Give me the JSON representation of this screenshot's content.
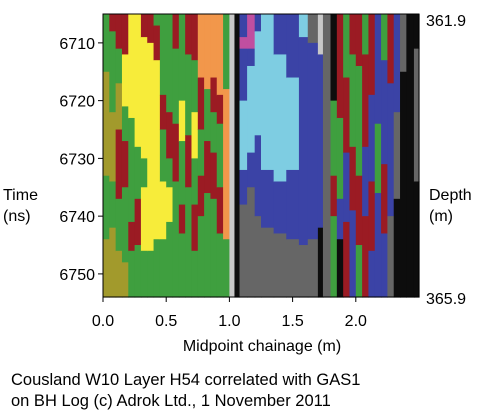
{
  "chart_data": {
    "type": "heatmap",
    "title": "",
    "xlabel": "Midpoint chainage (m)",
    "ylabel_left": [
      "Time",
      "(ns)"
    ],
    "ylabel_right": [
      "Depth",
      "(m)"
    ],
    "xlim": [
      0,
      2.5
    ],
    "ylim": [
      6705,
      6754
    ],
    "xticks": [
      0.0,
      0.5,
      1.0,
      1.5,
      2.0
    ],
    "xtick_labels": [
      "0.0",
      "0.5",
      "1.0",
      "1.5",
      "2.0"
    ],
    "yticks": [
      6710,
      6720,
      6730,
      6740,
      6750
    ],
    "ytick_labels": [
      "6710",
      "6720",
      "6730",
      "6740",
      "6750"
    ],
    "depth_top": "361.9",
    "depth_bottom": "365.9",
    "palette": {
      "yellow": "#f7ec3a",
      "olive": "#a29a2c",
      "green": "#3f9f3f",
      "darkred": "#9b1b23",
      "orange": "#f2974b",
      "lightgray": "#c8c8c8",
      "gray": "#666666",
      "black": "#0d0d0d",
      "blue": "#3b43a6",
      "cyan": "#7ecde2",
      "magenta": "#c04fa0",
      "white": "#ffffff"
    },
    "columns": [
      {
        "x0": 0.0,
        "x1": 0.05,
        "segments": [
          [
            "green",
            6705,
            6715
          ],
          [
            "olive",
            6715,
            6733
          ],
          [
            "green",
            6733,
            6744
          ],
          [
            "olive",
            6744,
            6754
          ]
        ]
      },
      {
        "x0": 0.05,
        "x1": 0.1,
        "segments": [
          [
            "darkred",
            6705,
            6708
          ],
          [
            "green",
            6708,
            6722
          ],
          [
            "olive",
            6722,
            6734
          ],
          [
            "green",
            6734,
            6742
          ],
          [
            "olive",
            6742,
            6754
          ]
        ]
      },
      {
        "x0": 0.1,
        "x1": 0.15,
        "segments": [
          [
            "darkred",
            6705,
            6711
          ],
          [
            "green",
            6711,
            6717
          ],
          [
            "olive",
            6717,
            6725
          ],
          [
            "darkred",
            6725,
            6737
          ],
          [
            "green",
            6737,
            6746
          ],
          [
            "olive",
            6746,
            6754
          ]
        ]
      },
      {
        "x0": 0.15,
        "x1": 0.2,
        "segments": [
          [
            "darkred",
            6705,
            6712
          ],
          [
            "yellow",
            6712,
            6721
          ],
          [
            "green",
            6721,
            6727
          ],
          [
            "darkred",
            6727,
            6735
          ],
          [
            "green",
            6735,
            6748
          ],
          [
            "olive",
            6748,
            6754
          ]
        ]
      },
      {
        "x0": 0.2,
        "x1": 0.25,
        "segments": [
          [
            "yellow",
            6705,
            6723
          ],
          [
            "green",
            6723,
            6741
          ],
          [
            "darkred",
            6741,
            6746
          ],
          [
            "green",
            6746,
            6754
          ]
        ]
      },
      {
        "x0": 0.25,
        "x1": 0.3,
        "segments": [
          [
            "yellow",
            6705,
            6728
          ],
          [
            "green",
            6728,
            6737
          ],
          [
            "darkred",
            6737,
            6745
          ],
          [
            "green",
            6745,
            6754
          ]
        ]
      },
      {
        "x0": 0.3,
        "x1": 0.35,
        "segments": [
          [
            "darkred",
            6705,
            6709
          ],
          [
            "yellow",
            6709,
            6730
          ],
          [
            "green",
            6730,
            6735
          ],
          [
            "yellow",
            6735,
            6746
          ],
          [
            "green",
            6746,
            6754
          ]
        ]
      },
      {
        "x0": 0.35,
        "x1": 0.4,
        "segments": [
          [
            "darkred",
            6705,
            6710
          ],
          [
            "yellow",
            6710,
            6746
          ],
          [
            "green",
            6746,
            6754
          ]
        ]
      },
      {
        "x0": 0.4,
        "x1": 0.45,
        "segments": [
          [
            "green",
            6705,
            6707
          ],
          [
            "darkred",
            6707,
            6713
          ],
          [
            "yellow",
            6713,
            6744
          ],
          [
            "green",
            6744,
            6754
          ]
        ]
      },
      {
        "x0": 0.45,
        "x1": 0.5,
        "segments": [
          [
            "green",
            6705,
            6719
          ],
          [
            "darkred",
            6719,
            6725
          ],
          [
            "green",
            6725,
            6734
          ],
          [
            "yellow",
            6734,
            6744
          ],
          [
            "green",
            6744,
            6754
          ]
        ]
      },
      {
        "x0": 0.5,
        "x1": 0.55,
        "segments": [
          [
            "green",
            6705,
            6722
          ],
          [
            "darkred",
            6722,
            6730
          ],
          [
            "green",
            6730,
            6735
          ],
          [
            "yellow",
            6735,
            6741
          ],
          [
            "green",
            6741,
            6754
          ]
        ]
      },
      {
        "x0": 0.55,
        "x1": 0.6,
        "segments": [
          [
            "darkred",
            6705,
            6711
          ],
          [
            "green",
            6711,
            6724
          ],
          [
            "darkred",
            6724,
            6734
          ],
          [
            "green",
            6734,
            6754
          ]
        ]
      },
      {
        "x0": 0.6,
        "x1": 0.65,
        "segments": [
          [
            "green",
            6705,
            6720
          ],
          [
            "yellow",
            6720,
            6727
          ],
          [
            "green",
            6727,
            6738
          ],
          [
            "darkred",
            6738,
            6743
          ],
          [
            "green",
            6743,
            6754
          ]
        ]
      },
      {
        "x0": 0.65,
        "x1": 0.7,
        "segments": [
          [
            "darkred",
            6705,
            6712
          ],
          [
            "green",
            6712,
            6726
          ],
          [
            "darkred",
            6726,
            6735
          ],
          [
            "green",
            6735,
            6754
          ]
        ]
      },
      {
        "x0": 0.7,
        "x1": 0.75,
        "segments": [
          [
            "darkred",
            6705,
            6713
          ],
          [
            "green",
            6713,
            6722
          ],
          [
            "yellow",
            6722,
            6730
          ],
          [
            "green",
            6730,
            6738
          ],
          [
            "darkred",
            6738,
            6746
          ],
          [
            "green",
            6746,
            6754
          ]
        ]
      },
      {
        "x0": 0.75,
        "x1": 0.8,
        "segments": [
          [
            "orange",
            6705,
            6716
          ],
          [
            "darkred",
            6716,
            6725
          ],
          [
            "green",
            6725,
            6733
          ],
          [
            "darkred",
            6733,
            6740
          ],
          [
            "green",
            6740,
            6754
          ]
        ]
      },
      {
        "x0": 0.8,
        "x1": 0.85,
        "segments": [
          [
            "orange",
            6705,
            6718
          ],
          [
            "green",
            6718,
            6727
          ],
          [
            "darkred",
            6727,
            6736
          ],
          [
            "green",
            6736,
            6754
          ]
        ]
      },
      {
        "x0": 0.85,
        "x1": 0.9,
        "segments": [
          [
            "orange",
            6705,
            6716
          ],
          [
            "darkred",
            6716,
            6722
          ],
          [
            "green",
            6722,
            6729
          ],
          [
            "darkred",
            6729,
            6737
          ],
          [
            "green",
            6737,
            6754
          ]
        ]
      },
      {
        "x0": 0.9,
        "x1": 0.95,
        "segments": [
          [
            "orange",
            6705,
            6719
          ],
          [
            "darkred",
            6719,
            6724
          ],
          [
            "green",
            6724,
            6735
          ],
          [
            "darkred",
            6735,
            6743
          ],
          [
            "green",
            6743,
            6754
          ]
        ]
      },
      {
        "x0": 0.95,
        "x1": 1.0,
        "segments": [
          [
            "green",
            6705,
            6718
          ],
          [
            "orange",
            6718,
            6744
          ],
          [
            "green",
            6744,
            6754
          ]
        ]
      },
      {
        "x0": 1.0,
        "x1": 1.04,
        "segments": [
          [
            "lightgray",
            6705,
            6754
          ]
        ]
      },
      {
        "x0": 1.04,
        "x1": 1.08,
        "segments": [
          [
            "black",
            6705,
            6754
          ]
        ]
      },
      {
        "x0": 1.08,
        "x1": 1.14,
        "segments": [
          [
            "blue",
            6705,
            6709
          ],
          [
            "magenta",
            6709,
            6711
          ],
          [
            "blue",
            6711,
            6720
          ],
          [
            "cyan",
            6720,
            6732
          ],
          [
            "blue",
            6732,
            6738
          ],
          [
            "gray",
            6738,
            6754
          ]
        ]
      },
      {
        "x0": 1.14,
        "x1": 1.2,
        "segments": [
          [
            "magenta",
            6705,
            6711
          ],
          [
            "blue",
            6711,
            6714
          ],
          [
            "cyan",
            6714,
            6729
          ],
          [
            "blue",
            6729,
            6735
          ],
          [
            "gray",
            6735,
            6754
          ]
        ]
      },
      {
        "x0": 1.2,
        "x1": 1.25,
        "segments": [
          [
            "blue",
            6705,
            6708
          ],
          [
            "cyan",
            6708,
            6726
          ],
          [
            "blue",
            6726,
            6740
          ],
          [
            "gray",
            6740,
            6754
          ]
        ]
      },
      {
        "x0": 1.25,
        "x1": 1.35,
        "segments": [
          [
            "cyan",
            6705,
            6732
          ],
          [
            "blue",
            6732,
            6742
          ],
          [
            "gray",
            6742,
            6754
          ]
        ]
      },
      {
        "x0": 1.35,
        "x1": 1.45,
        "segments": [
          [
            "blue",
            6705,
            6712
          ],
          [
            "cyan",
            6712,
            6734
          ],
          [
            "blue",
            6734,
            6743
          ],
          [
            "gray",
            6743,
            6754
          ]
        ]
      },
      {
        "x0": 1.45,
        "x1": 1.55,
        "segments": [
          [
            "blue",
            6705,
            6716
          ],
          [
            "cyan",
            6716,
            6732
          ],
          [
            "blue",
            6732,
            6744
          ],
          [
            "gray",
            6744,
            6754
          ]
        ]
      },
      {
        "x0": 1.55,
        "x1": 1.62,
        "segments": [
          [
            "cyan",
            6705,
            6709
          ],
          [
            "blue",
            6709,
            6745
          ],
          [
            "gray",
            6745,
            6754
          ]
        ]
      },
      {
        "x0": 1.62,
        "x1": 1.7,
        "segments": [
          [
            "gray",
            6705,
            6710
          ],
          [
            "blue",
            6710,
            6744
          ],
          [
            "gray",
            6744,
            6754
          ]
        ]
      },
      {
        "x0": 1.7,
        "x1": 1.74,
        "segments": [
          [
            "lightgray",
            6705,
            6712
          ],
          [
            "blue",
            6712,
            6742
          ],
          [
            "black",
            6742,
            6754
          ]
        ]
      },
      {
        "x0": 1.74,
        "x1": 1.8,
        "segments": [
          [
            "gray",
            6705,
            6754
          ]
        ]
      },
      {
        "x0": 1.8,
        "x1": 1.85,
        "segments": [
          [
            "black",
            6705,
            6720
          ],
          [
            "green",
            6720,
            6733
          ],
          [
            "darkred",
            6733,
            6740
          ],
          [
            "green",
            6740,
            6754
          ]
        ]
      },
      {
        "x0": 1.85,
        "x1": 1.9,
        "segments": [
          [
            "darkred",
            6705,
            6723
          ],
          [
            "green",
            6723,
            6737
          ],
          [
            "blue",
            6737,
            6744
          ],
          [
            "black",
            6744,
            6754
          ]
        ]
      },
      {
        "x0": 1.9,
        "x1": 1.95,
        "segments": [
          [
            "green",
            6705,
            6716
          ],
          [
            "darkred",
            6716,
            6729
          ],
          [
            "blue",
            6729,
            6741
          ],
          [
            "darkred",
            6741,
            6754
          ]
        ]
      },
      {
        "x0": 1.95,
        "x1": 2.0,
        "segments": [
          [
            "darkred",
            6705,
            6712
          ],
          [
            "green",
            6712,
            6728
          ],
          [
            "darkred",
            6728,
            6739
          ],
          [
            "blue",
            6739,
            6754
          ]
        ]
      },
      {
        "x0": 2.0,
        "x1": 2.05,
        "segments": [
          [
            "darkred",
            6705,
            6714
          ],
          [
            "green",
            6714,
            6733
          ],
          [
            "darkred",
            6733,
            6745
          ],
          [
            "green",
            6745,
            6754
          ]
        ]
      },
      {
        "x0": 2.05,
        "x1": 2.1,
        "segments": [
          [
            "green",
            6705,
            6712
          ],
          [
            "darkred",
            6712,
            6728
          ],
          [
            "blue",
            6728,
            6740
          ],
          [
            "darkred",
            6740,
            6754
          ]
        ]
      },
      {
        "x0": 2.1,
        "x1": 2.15,
        "segments": [
          [
            "darkred",
            6705,
            6719
          ],
          [
            "blue",
            6719,
            6734
          ],
          [
            "darkred",
            6734,
            6746
          ],
          [
            "blue",
            6746,
            6754
          ]
        ]
      },
      {
        "x0": 2.15,
        "x1": 2.2,
        "segments": [
          [
            "blue",
            6705,
            6724
          ],
          [
            "green",
            6724,
            6736
          ],
          [
            "blue",
            6736,
            6754
          ]
        ]
      },
      {
        "x0": 2.2,
        "x1": 2.25,
        "segments": [
          [
            "green",
            6705,
            6713
          ],
          [
            "blue",
            6713,
            6731
          ],
          [
            "darkred",
            6731,
            6743
          ],
          [
            "blue",
            6743,
            6754
          ]
        ]
      },
      {
        "x0": 2.25,
        "x1": 2.3,
        "segments": [
          [
            "darkred",
            6705,
            6717
          ],
          [
            "blue",
            6717,
            6740
          ],
          [
            "gray",
            6740,
            6754
          ]
        ]
      },
      {
        "x0": 2.3,
        "x1": 2.35,
        "segments": [
          [
            "blue",
            6705,
            6722
          ],
          [
            "gray",
            6722,
            6737
          ],
          [
            "black",
            6737,
            6754
          ]
        ]
      },
      {
        "x0": 2.35,
        "x1": 2.4,
        "segments": [
          [
            "gray",
            6705,
            6715
          ],
          [
            "black",
            6715,
            6754
          ]
        ]
      },
      {
        "x0": 2.4,
        "x1": 2.46,
        "segments": [
          [
            "black",
            6705,
            6754
          ]
        ]
      },
      {
        "x0": 2.46,
        "x1": 2.5,
        "segments": [
          [
            "black",
            6705,
            6711
          ],
          [
            "gray",
            6711,
            6734
          ],
          [
            "black",
            6734,
            6754
          ]
        ]
      }
    ]
  },
  "caption": {
    "line1": "Cousland W10 Layer H54 correlated with GAS1",
    "line2": "on BH Log (c) Adrok Ltd., 1 November 2011"
  }
}
